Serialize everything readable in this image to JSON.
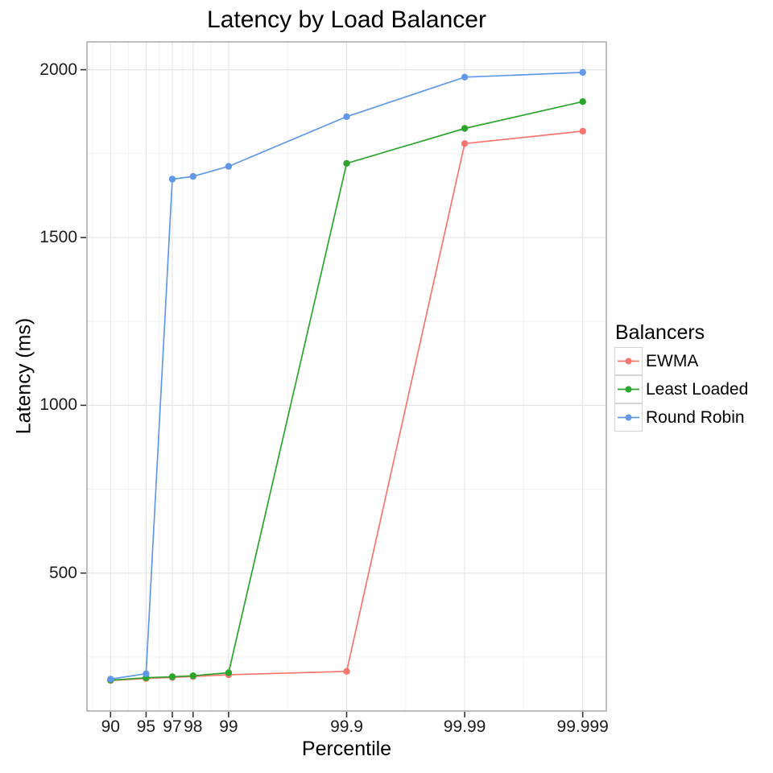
{
  "chart_data": {
    "type": "line",
    "title": "Latency by Load Balancer",
    "xlabel": "Percentile",
    "ylabel": "Latency (ms)",
    "legend_title": "Balancers",
    "legend_position": "right",
    "x_scale": "nines = -log10(1 - percentile/100)",
    "x": [
      90,
      95,
      97,
      98,
      99,
      99.9,
      99.99,
      99.999
    ],
    "x_tick_labels": [
      "90",
      "95",
      "97",
      "98",
      "99",
      "99.9",
      "99.99",
      "99.999"
    ],
    "y_ticks": [
      500,
      1000,
      1500,
      2000
    ],
    "y_tick_labels": [
      "500",
      "1000",
      "1500",
      "2000"
    ],
    "x_domain_nines": [
      0.8,
      5.2
    ],
    "y_domain": [
      89,
      2083
    ],
    "grid": {
      "major": true,
      "minor": true
    },
    "series": [
      {
        "name": "EWMA",
        "color": "#F8766D",
        "values": [
          180,
          186,
          189,
          192,
          197,
          207,
          1780,
          1817
        ]
      },
      {
        "name": "Least Loaded",
        "color": "#2CA52C",
        "values": [
          181,
          188,
          191,
          194,
          203,
          1721,
          1825,
          1905
        ]
      },
      {
        "name": "Round Robin",
        "color": "#6298EA",
        "values": [
          184,
          200,
          1674,
          1682,
          1712,
          1860,
          1978,
          1992
        ]
      }
    ],
    "style": {
      "grid_major_color": "#e6e6e6",
      "grid_minor_color": "#f2f2f2",
      "panel_border_color": "#9c9c9c",
      "tick_color": "#333333",
      "text_color": "#000000",
      "panel_bg": "#ffffff"
    }
  }
}
